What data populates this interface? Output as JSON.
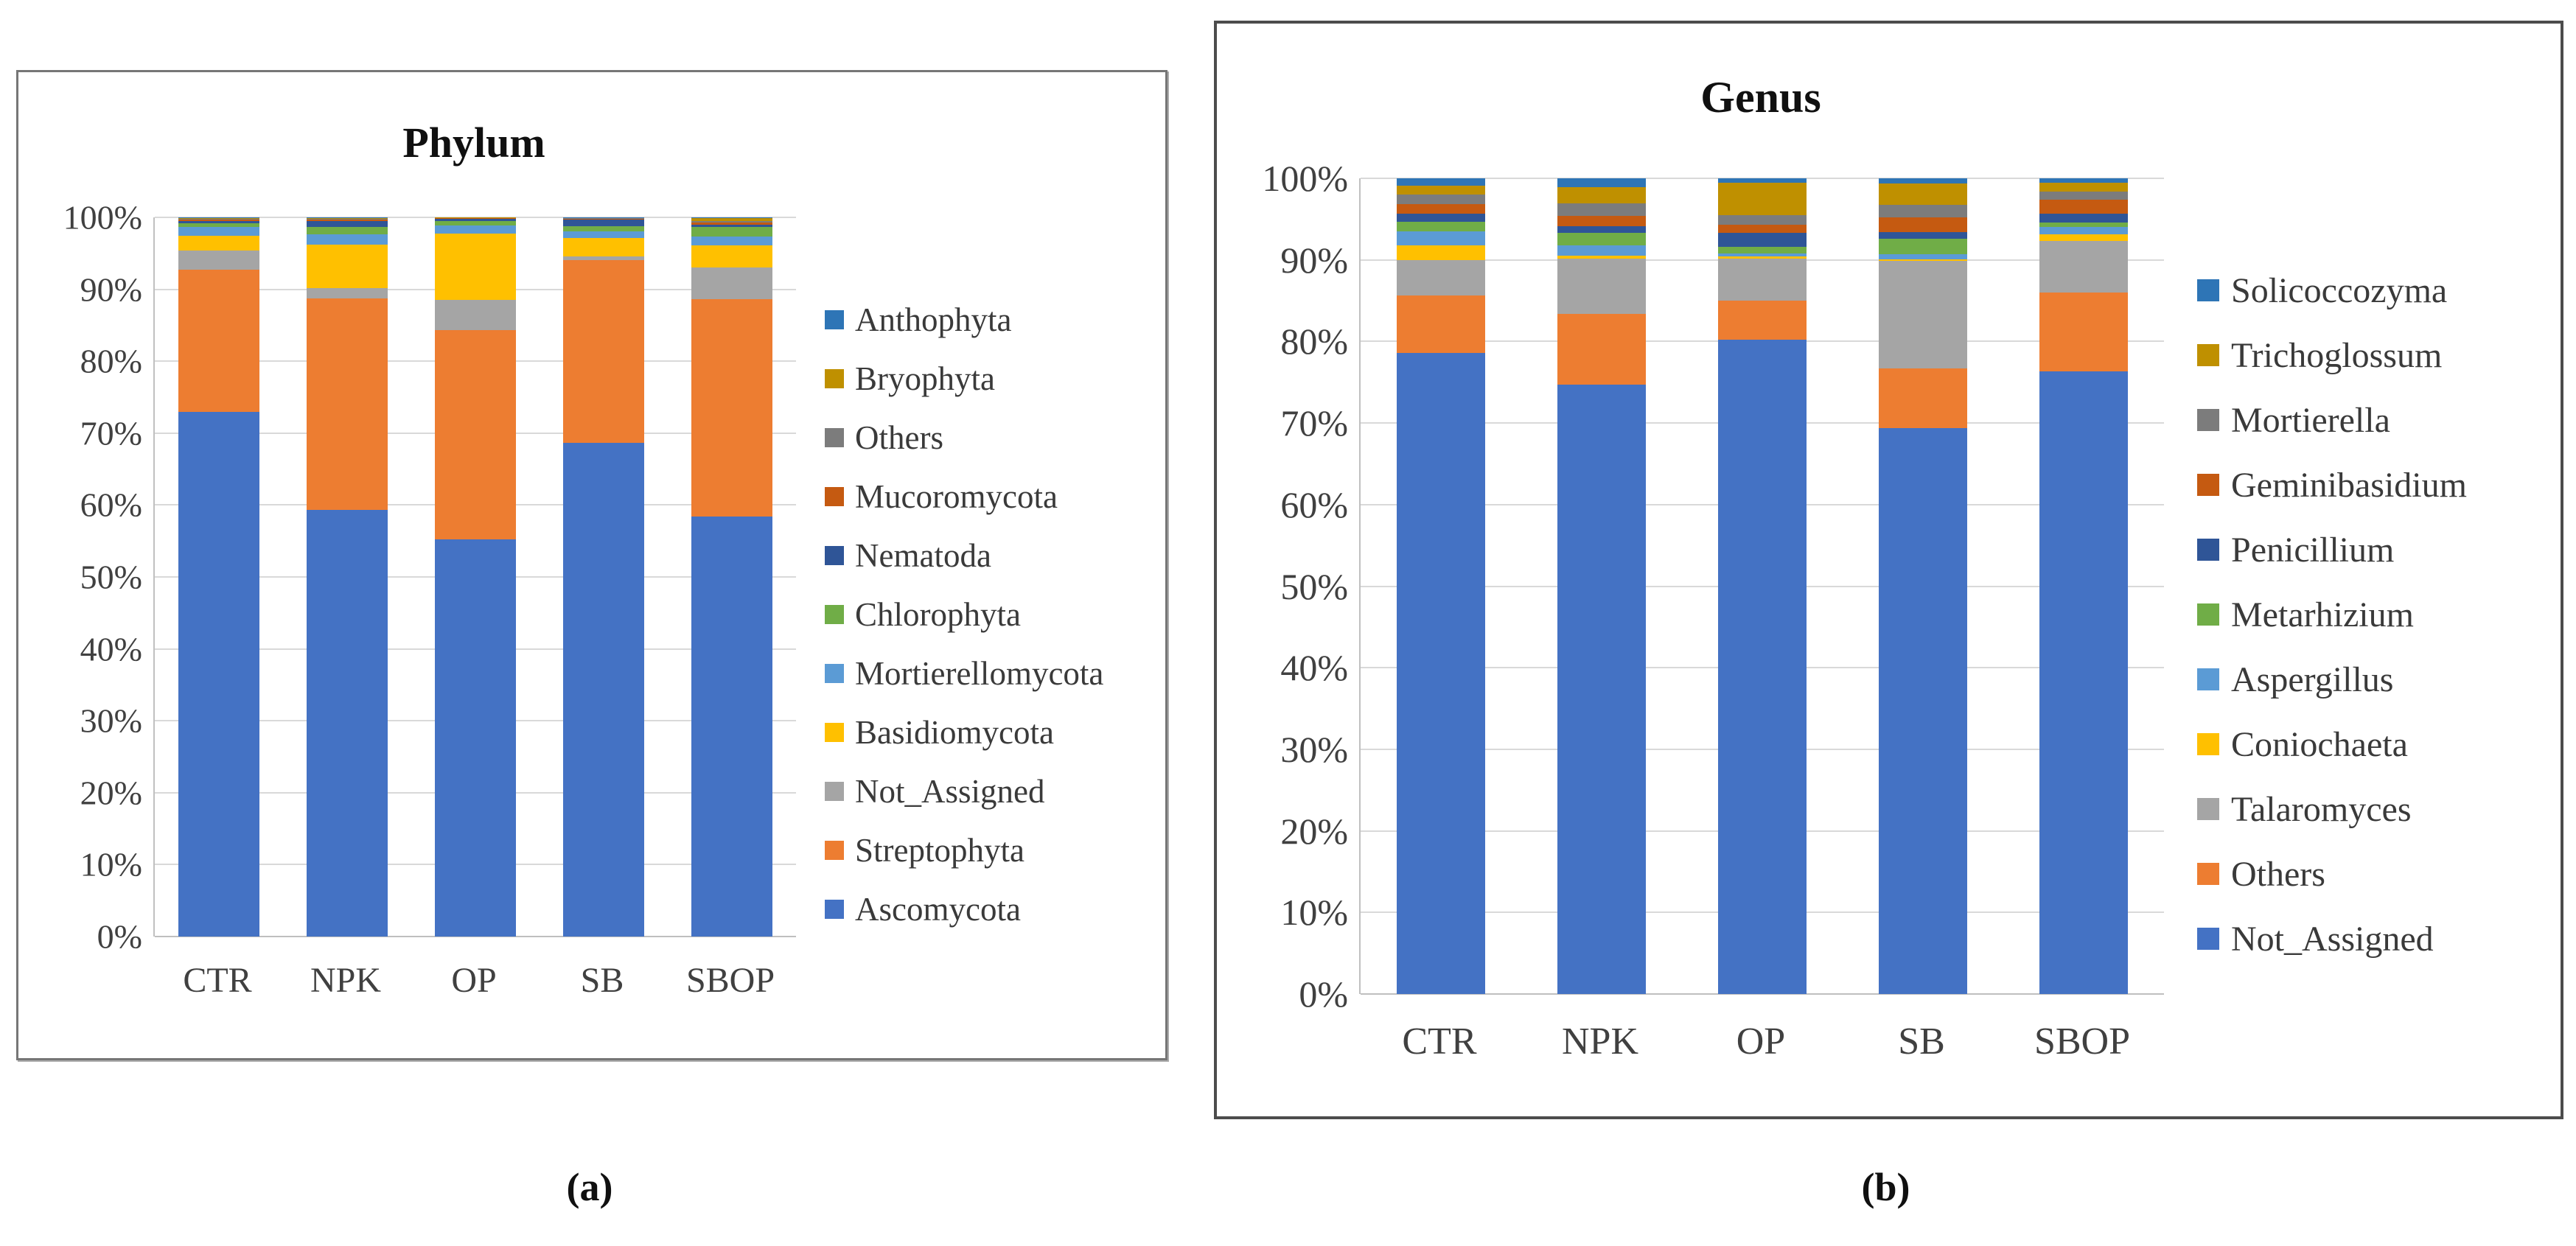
{
  "figure": {
    "captions": {
      "a": "(a)",
      "b": "(b)"
    }
  },
  "chart_data": [
    {
      "id": "phylum",
      "type": "bar",
      "stacked": true,
      "units": "percent",
      "title": "Phylum",
      "categories": [
        "CTR",
        "NPK",
        "OP",
        "SB",
        "SBOP"
      ],
      "y_ticks": [
        "100%",
        "90%",
        "80%",
        "70%",
        "60%",
        "50%",
        "40%",
        "30%",
        "20%",
        "10%",
        "0%"
      ],
      "ylim": [
        0,
        100
      ],
      "grid": true,
      "legend_position": "right",
      "legend_order": "top-is-last-series",
      "series": [
        {
          "name": "Ascomycota",
          "color": "#4472C4",
          "values": [
            73.0,
            59.3,
            55.2,
            68.6,
            58.4
          ]
        },
        {
          "name": "Streptophyta",
          "color": "#ED7D31",
          "values": [
            19.7,
            29.4,
            29.1,
            25.5,
            30.2
          ]
        },
        {
          "name": "Not_Assigned",
          "color": "#A5A5A5",
          "values": [
            2.7,
            1.5,
            4.2,
            0.5,
            4.4
          ]
        },
        {
          "name": "Basidiomycota",
          "color": "#FFC000",
          "values": [
            2.0,
            6.0,
            9.2,
            2.5,
            3.1
          ]
        },
        {
          "name": "Mortierellomycota",
          "color": "#5B9BD5",
          "values": [
            1.3,
            1.5,
            1.2,
            1.0,
            1.2
          ]
        },
        {
          "name": "Chlorophyta",
          "color": "#70AD47",
          "values": [
            0.5,
            1.0,
            0.6,
            0.7,
            1.4
          ]
        },
        {
          "name": "Nematoda",
          "color": "#2F5597",
          "values": [
            0.3,
            0.8,
            0.3,
            0.9,
            0.3
          ]
        },
        {
          "name": "Mucoromycota",
          "color": "#C55A11",
          "values": [
            0.2,
            0.2,
            0.1,
            0.1,
            0.3
          ]
        },
        {
          "name": "Others",
          "color": "#7C7C7C",
          "values": [
            0.15,
            0.15,
            0.05,
            0.1,
            0.2
          ]
        },
        {
          "name": "Bryophyta",
          "color": "#BF9000",
          "values": [
            0.1,
            0.1,
            0.03,
            0.05,
            0.4
          ]
        },
        {
          "name": "Anthophyta",
          "color": "#2E75B6",
          "values": [
            0.05,
            0.05,
            0.02,
            0.05,
            0.1
          ]
        }
      ]
    },
    {
      "id": "genus",
      "type": "bar",
      "stacked": true,
      "units": "percent",
      "title": "Genus",
      "categories": [
        "CTR",
        "NPK",
        "OP",
        "SB",
        "SBOP"
      ],
      "y_ticks": [
        "100%",
        "90%",
        "80%",
        "70%",
        "60%",
        "50%",
        "40%",
        "30%",
        "20%",
        "10%",
        "0%"
      ],
      "ylim": [
        0,
        100
      ],
      "grid": true,
      "legend_position": "right",
      "legend_order": "top-is-last-series",
      "series": [
        {
          "name": "Not_Assigned",
          "color": "#4472C4",
          "values": [
            78.6,
            74.7,
            80.2,
            69.4,
            76.3
          ]
        },
        {
          "name": "Others",
          "color": "#ED7D31",
          "values": [
            7.0,
            8.7,
            4.8,
            7.3,
            9.7
          ]
        },
        {
          "name": "Talaromyces",
          "color": "#A5A5A5",
          "values": [
            4.4,
            6.8,
            5.2,
            13.2,
            6.3
          ]
        },
        {
          "name": "Coniochaeta",
          "color": "#FFC000",
          "values": [
            1.8,
            0.3,
            0.2,
            0.2,
            0.8
          ]
        },
        {
          "name": "Aspergillus",
          "color": "#5B9BD5",
          "values": [
            1.7,
            1.3,
            0.4,
            0.6,
            0.9
          ]
        },
        {
          "name": "Metarhizium",
          "color": "#70AD47",
          "values": [
            1.2,
            1.5,
            0.8,
            1.9,
            0.6
          ]
        },
        {
          "name": "Penicillium",
          "color": "#2F5597",
          "values": [
            1.0,
            0.8,
            1.7,
            0.8,
            1.1
          ]
        },
        {
          "name": "Geminibasidium",
          "color": "#C55A11",
          "values": [
            1.1,
            1.3,
            1.0,
            1.8,
            1.7
          ]
        },
        {
          "name": "Mortierella",
          "color": "#7C7C7C",
          "values": [
            1.2,
            1.5,
            1.2,
            1.6,
            1.0
          ]
        },
        {
          "name": "Trichoglossum",
          "color": "#BF9000",
          "values": [
            1.1,
            2.0,
            4.0,
            2.6,
            1.1
          ]
        },
        {
          "name": "Solicoccozyma",
          "color": "#2E75B6",
          "values": [
            0.9,
            1.1,
            0.5,
            0.6,
            0.5
          ]
        }
      ]
    }
  ]
}
